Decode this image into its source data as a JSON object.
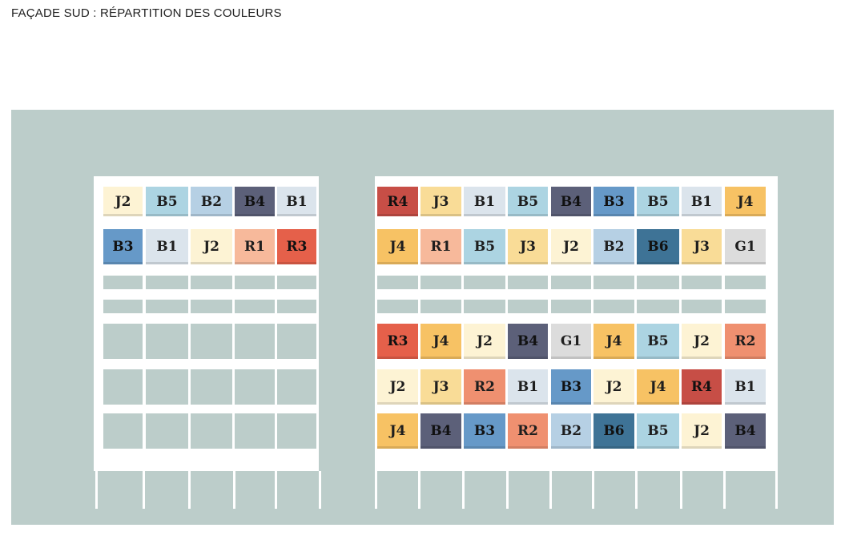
{
  "title": "FAÇADE SUD : RÉPARTITION DES COULEURS",
  "colors": {
    "J2": "#fdf3d4",
    "J3": "#f9dc97",
    "J4": "#f7c264",
    "B1": "#dbe4ec",
    "B2": "#b6d0e4",
    "B3": "#6699c8",
    "B4": "#5c6079",
    "B5": "#acd4e2",
    "B6": "#3e7396",
    "R1": "#f7b99b",
    "R2": "#ef9070",
    "R3": "#e5604a",
    "R4": "#c74e46",
    "G1": "#dcdcdc"
  },
  "left_panels": [
    [
      "J2",
      "B5",
      "B2",
      "B4",
      "B1"
    ],
    [
      "B3",
      "B1",
      "J2",
      "R1",
      "R3"
    ]
  ],
  "right_panels_top": [
    [
      "R4",
      "J3",
      "B1",
      "B5",
      "B4",
      "B3",
      "B5",
      "B1",
      "J4"
    ],
    [
      "J4",
      "R1",
      "B5",
      "J3",
      "J2",
      "B2",
      "B6",
      "J3",
      "G1"
    ]
  ],
  "right_panels_bottom": [
    [
      "R3",
      "J4",
      "J2",
      "B4",
      "G1",
      "J4",
      "B5",
      "J2",
      "R2"
    ],
    [
      "J2",
      "J3",
      "R2",
      "B1",
      "B3",
      "J2",
      "J4",
      "R4",
      "B1"
    ],
    [
      "J4",
      "B4",
      "B3",
      "R2",
      "B2",
      "B6",
      "B5",
      "J2",
      "B4"
    ]
  ]
}
